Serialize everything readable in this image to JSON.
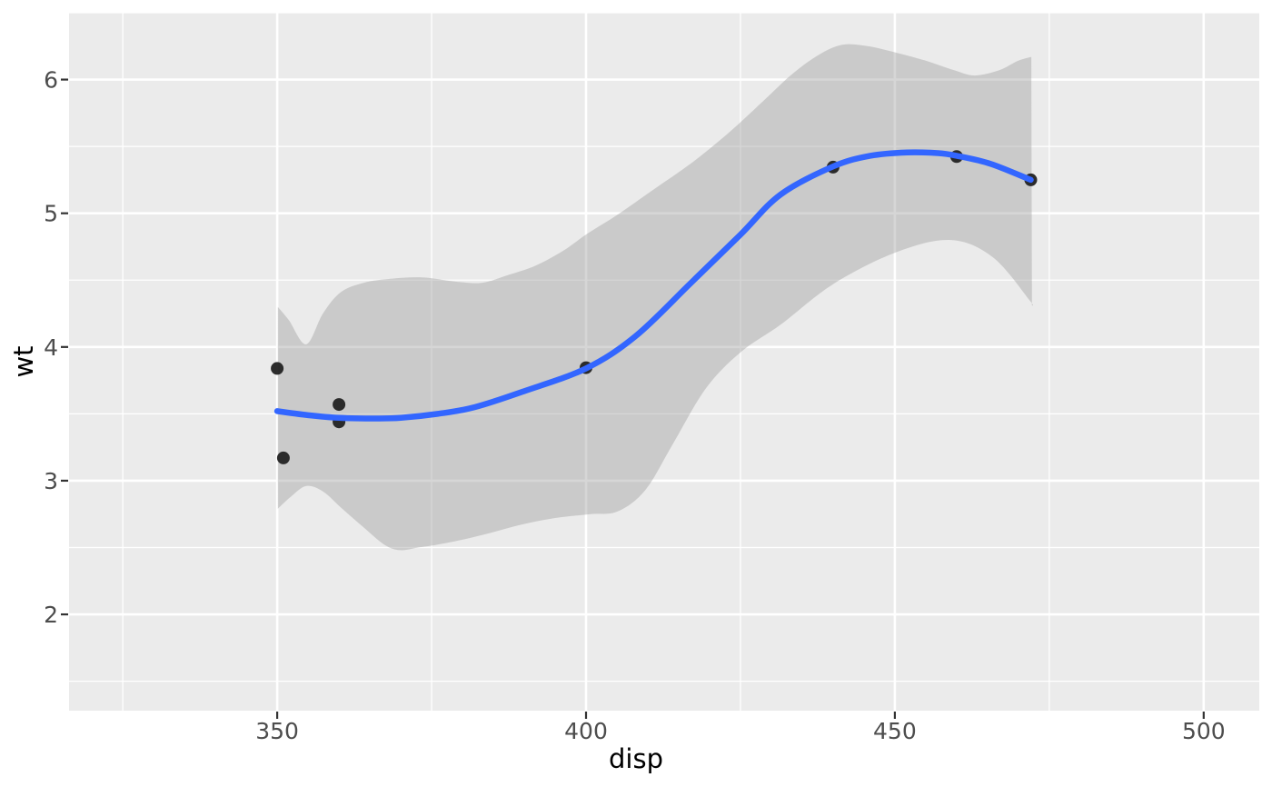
{
  "chart_data": {
    "type": "scatter",
    "title": "",
    "xlabel": "disp",
    "ylabel": "wt",
    "grid": true,
    "legend": false,
    "x_domain": [
      316.3,
      509.0
    ],
    "y_domain": [
      1.28,
      6.5
    ],
    "x_ticks": [
      {
        "value": 350,
        "label": "350"
      },
      {
        "value": 400,
        "label": "400"
      },
      {
        "value": 450,
        "label": "450"
      },
      {
        "value": 500,
        "label": "500"
      }
    ],
    "y_ticks": [
      {
        "value": 2,
        "label": "2"
      },
      {
        "value": 3,
        "label": "3"
      },
      {
        "value": 4,
        "label": "4"
      },
      {
        "value": 5,
        "label": "5"
      },
      {
        "value": 6,
        "label": "6"
      }
    ],
    "x_minor_ticks": [
      325,
      375,
      425,
      475
    ],
    "y_minor_ticks": [
      1.5,
      2.5,
      3.5,
      4.5,
      5.5,
      6.5
    ],
    "points": [
      {
        "disp": 350,
        "wt": 3.84
      },
      {
        "disp": 351,
        "wt": 3.17
      },
      {
        "disp": 360,
        "wt": 3.57
      },
      {
        "disp": 360,
        "wt": 3.44
      },
      {
        "disp": 400,
        "wt": 3.845
      },
      {
        "disp": 440,
        "wt": 5.345
      },
      {
        "disp": 460,
        "wt": 5.424
      },
      {
        "disp": 472,
        "wt": 5.25
      }
    ],
    "smooth_line": [
      [
        350,
        3.52
      ],
      [
        355,
        3.49
      ],
      [
        360,
        3.47
      ],
      [
        365.5,
        3.465
      ],
      [
        370,
        3.47
      ],
      [
        376,
        3.5
      ],
      [
        382,
        3.55
      ],
      [
        390,
        3.67
      ],
      [
        400,
        3.84
      ],
      [
        408,
        4.08
      ],
      [
        417,
        4.48
      ],
      [
        425,
        4.84
      ],
      [
        431.5,
        5.14
      ],
      [
        440,
        5.35
      ],
      [
        446,
        5.43
      ],
      [
        452,
        5.455
      ],
      [
        457,
        5.45
      ],
      [
        460,
        5.43
      ],
      [
        465.5,
        5.37
      ],
      [
        472,
        5.25
      ]
    ],
    "ribbon_upper": [
      [
        350.1,
        4.3
      ],
      [
        351.9,
        4.2
      ],
      [
        354.7,
        4.02
      ],
      [
        357.4,
        4.25
      ],
      [
        360.3,
        4.41
      ],
      [
        364.0,
        4.48
      ],
      [
        368.4,
        4.51
      ],
      [
        373.5,
        4.52
      ],
      [
        378.7,
        4.49
      ],
      [
        383.1,
        4.48
      ],
      [
        387.5,
        4.54
      ],
      [
        391.9,
        4.61
      ],
      [
        396.3,
        4.72
      ],
      [
        400.3,
        4.85
      ],
      [
        405.1,
        4.99
      ],
      [
        411.0,
        5.18
      ],
      [
        416.9,
        5.37
      ],
      [
        422.8,
        5.59
      ],
      [
        428.7,
        5.84
      ],
      [
        433.1,
        6.03
      ],
      [
        437.5,
        6.18
      ],
      [
        441.5,
        6.26
      ],
      [
        445.6,
        6.25
      ],
      [
        450.3,
        6.2
      ],
      [
        455.1,
        6.14
      ],
      [
        459.6,
        6.07
      ],
      [
        462.9,
        6.03
      ],
      [
        466.9,
        6.07
      ],
      [
        469.9,
        6.14
      ],
      [
        472.1,
        6.17
      ]
    ],
    "ribbon_lower": [
      [
        350.1,
        2.79
      ],
      [
        352.2,
        2.88
      ],
      [
        354.7,
        2.96
      ],
      [
        357.4,
        2.92
      ],
      [
        360.3,
        2.8
      ],
      [
        364.0,
        2.65
      ],
      [
        367.4,
        2.52
      ],
      [
        369.9,
        2.48
      ],
      [
        372.8,
        2.5
      ],
      [
        375.7,
        2.52
      ],
      [
        380.1,
        2.56
      ],
      [
        384.6,
        2.61
      ],
      [
        389.4,
        2.67
      ],
      [
        394.9,
        2.72
      ],
      [
        400.7,
        2.75
      ],
      [
        405.1,
        2.77
      ],
      [
        409.6,
        2.93
      ],
      [
        414.0,
        3.27
      ],
      [
        419.4,
        3.69
      ],
      [
        425.0,
        3.96
      ],
      [
        431.6,
        4.17
      ],
      [
        440.0,
        4.47
      ],
      [
        450.3,
        4.71
      ],
      [
        459.1,
        4.8
      ],
      [
        465.9,
        4.67
      ],
      [
        471.8,
        4.35
      ],
      [
        472.2,
        4.31
      ]
    ],
    "colors": {
      "panel_background": "#EBEBEB",
      "gridline": "#FFFFFF",
      "smooth_line": "#3366FF",
      "point": "#222222",
      "ribbon_fill": "#9E9E9E",
      "tick_label": "#4D4D4D",
      "axis_title": "#000000",
      "tick_mark": "#333333"
    }
  }
}
